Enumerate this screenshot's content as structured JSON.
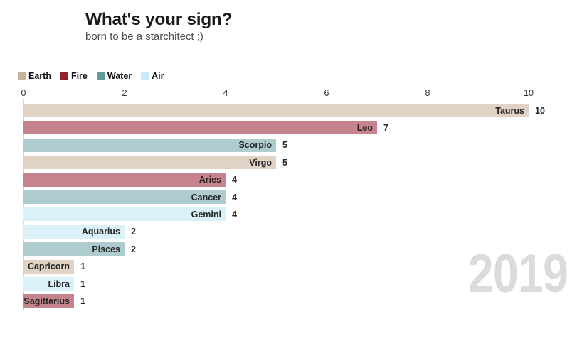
{
  "header": {
    "title": "What's your sign?",
    "subtitle": "born to be a starchitect ;)"
  },
  "legend": {
    "items": [
      {
        "label": "Earth",
        "color": "#c7b299",
        "bar_color": "#e0d3c5"
      },
      {
        "label": "Fire",
        "color": "#8e232c",
        "bar_color": "#c5838d"
      },
      {
        "label": "Water",
        "color": "#609a9c",
        "bar_color": "#aecbcd"
      },
      {
        "label": "Air",
        "color": "#c7eaf5",
        "bar_color": "#daf1f9"
      }
    ]
  },
  "axis": {
    "ticks": [
      0,
      2,
      4,
      6,
      8,
      10
    ],
    "max": 10
  },
  "bars": [
    {
      "label": "Taurus",
      "value": 10,
      "element": "Earth"
    },
    {
      "label": "Leo",
      "value": 7,
      "element": "Fire"
    },
    {
      "label": "Scorpio",
      "value": 5,
      "element": "Water"
    },
    {
      "label": "Virgo",
      "value": 5,
      "element": "Earth"
    },
    {
      "label": "Aries",
      "value": 4,
      "element": "Fire"
    },
    {
      "label": "Cancer",
      "value": 4,
      "element": "Water"
    },
    {
      "label": "Gemini",
      "value": 4,
      "element": "Air"
    },
    {
      "label": "Aquarius",
      "value": 2,
      "element": "Air"
    },
    {
      "label": "Pisces",
      "value": 2,
      "element": "Water"
    },
    {
      "label": "Capricorn",
      "value": 1,
      "element": "Earth"
    },
    {
      "label": "Libra",
      "value": 1,
      "element": "Air"
    },
    {
      "label": "Sagittarius",
      "value": 1,
      "element": "Fire"
    }
  ],
  "watermark": {
    "text": "2019",
    "color": "#dbdbdb"
  },
  "styles": {
    "gridline_color": "#d8d8d8"
  },
  "chart_data": {
    "type": "bar",
    "orientation": "horizontal",
    "title": "What's your sign?",
    "subtitle": "born to be a starchitect ;)",
    "categories": [
      "Taurus",
      "Leo",
      "Scorpio",
      "Virgo",
      "Aries",
      "Cancer",
      "Gemini",
      "Aquarius",
      "Pisces",
      "Capricorn",
      "Libra",
      "Sagittarius"
    ],
    "values": [
      10,
      7,
      5,
      5,
      4,
      4,
      4,
      2,
      2,
      1,
      1,
      1
    ],
    "category_groups": [
      "Earth",
      "Fire",
      "Water",
      "Earth",
      "Fire",
      "Water",
      "Air",
      "Air",
      "Water",
      "Earth",
      "Air",
      "Fire"
    ],
    "legend_entries": [
      "Earth",
      "Fire",
      "Water",
      "Air"
    ],
    "legend_position": "top-left",
    "xlabel": "",
    "ylabel": "",
    "xlim": [
      0,
      10
    ],
    "xticks": [
      0,
      2,
      4,
      6,
      8,
      10
    ],
    "grid": "vertical-only",
    "frame_label": "2019"
  }
}
